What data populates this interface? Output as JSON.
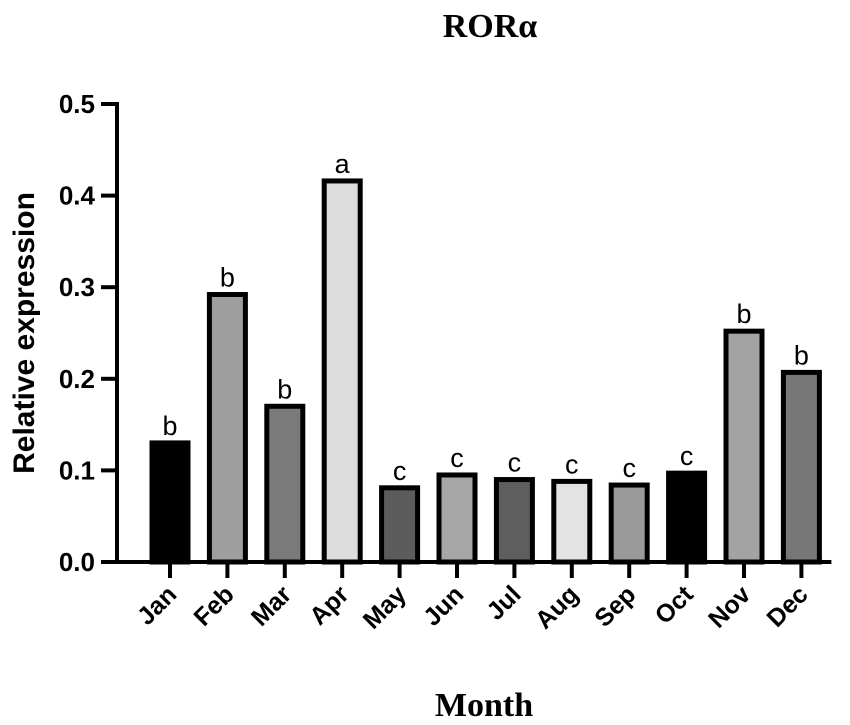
{
  "chart_data": {
    "type": "bar",
    "title": "RORα",
    "xlabel": "Month",
    "ylabel": "Relative expression",
    "ylim": [
      0,
      0.5
    ],
    "yticks": [
      "0.0",
      "0.1",
      "0.2",
      "0.3",
      "0.4",
      "0.5"
    ],
    "categories": [
      "Jan",
      "Feb",
      "Mar",
      "Apr",
      "May",
      "Jun",
      "Jul",
      "Aug",
      "Sep",
      "Oct",
      "Nov",
      "Dec"
    ],
    "values": [
      0.13,
      0.292,
      0.17,
      0.416,
      0.081,
      0.095,
      0.09,
      0.088,
      0.084,
      0.097,
      0.252,
      0.207
    ],
    "significance_labels": [
      "b",
      "b",
      "b",
      "a",
      "c",
      "c",
      "c",
      "c",
      "c",
      "c",
      "b",
      "b"
    ],
    "bar_colors": [
      "#000000",
      "#9e9e9e",
      "#7a7a7a",
      "#dcdcdc",
      "#5c5c5c",
      "#a6a6a6",
      "#5e5e5e",
      "#e3e3e3",
      "#9a9a9a",
      "#000000",
      "#a3a3a3",
      "#777777"
    ],
    "grid": false,
    "legend": "none"
  }
}
